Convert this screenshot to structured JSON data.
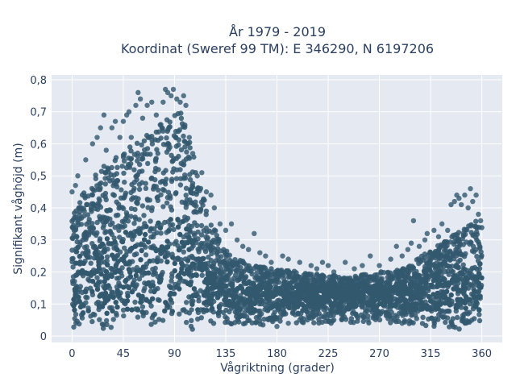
{
  "chart_data": {
    "type": "scatter",
    "title_line1": "År 1979 - 2019",
    "title_line2": "Koordinat (Sweref 99 TM): E 346290, N 6197206",
    "xlabel": "Vågriktning (grader)",
    "ylabel": "Signifikant våghöjd (m)",
    "xlim": [
      -18,
      378
    ],
    "ylim": [
      -0.02,
      0.815
    ],
    "x_ticks": [
      0,
      45,
      90,
      135,
      180,
      225,
      270,
      315,
      360
    ],
    "x_tick_labels": [
      "0",
      "45",
      "90",
      "135",
      "180",
      "225",
      "270",
      "315",
      "360"
    ],
    "y_ticks": [
      0,
      0.1,
      0.2,
      0.3,
      0.4,
      0.5,
      0.6,
      0.7,
      0.8
    ],
    "y_tick_labels": [
      "0",
      "0,1",
      "0,2",
      "0,3",
      "0,4",
      "0,5",
      "0,6",
      "0,7",
      "0,8"
    ],
    "grid": true,
    "colors": {
      "marker": "#32586e",
      "plot_bg": "#e5e9f2",
      "grid": "#ffffff",
      "text": "#2a3f5f"
    },
    "envelope": {
      "x": [
        0,
        10,
        20,
        30,
        40,
        45,
        55,
        60,
        70,
        80,
        90,
        95,
        100,
        105,
        110,
        120,
        130,
        140,
        160,
        180,
        200,
        225,
        250,
        270,
        290,
        300,
        310,
        320,
        330,
        340,
        350,
        355,
        360
      ],
      "lower": [
        0.02,
        0.02,
        0.02,
        0.02,
        0.02,
        0.02,
        0.02,
        0.02,
        0.02,
        0.02,
        0.02,
        0.02,
        0.02,
        0.02,
        0.02,
        0.02,
        0.02,
        0.03,
        0.03,
        0.04,
        0.04,
        0.04,
        0.04,
        0.04,
        0.04,
        0.03,
        0.03,
        0.03,
        0.03,
        0.02,
        0.02,
        0.02,
        0.02
      ],
      "upper": [
        0.38,
        0.45,
        0.5,
        0.54,
        0.56,
        0.58,
        0.6,
        0.62,
        0.64,
        0.67,
        0.7,
        0.7,
        0.66,
        0.6,
        0.5,
        0.38,
        0.3,
        0.25,
        0.22,
        0.21,
        0.2,
        0.19,
        0.19,
        0.2,
        0.21,
        0.23,
        0.26,
        0.28,
        0.3,
        0.33,
        0.35,
        0.36,
        0.34
      ]
    },
    "outliers": [
      {
        "x": 0,
        "y": 0.45
      },
      {
        "x": 3,
        "y": 0.47
      },
      {
        "x": 5,
        "y": 0.5
      },
      {
        "x": 12,
        "y": 0.55
      },
      {
        "x": 18,
        "y": 0.6
      },
      {
        "x": 22,
        "y": 0.62
      },
      {
        "x": 25,
        "y": 0.65
      },
      {
        "x": 28,
        "y": 0.69
      },
      {
        "x": 30,
        "y": 0.58
      },
      {
        "x": 35,
        "y": 0.65
      },
      {
        "x": 38,
        "y": 0.67
      },
      {
        "x": 42,
        "y": 0.62
      },
      {
        "x": 45,
        "y": 0.67
      },
      {
        "x": 48,
        "y": 0.69
      },
      {
        "x": 50,
        "y": 0.7
      },
      {
        "x": 52,
        "y": 0.62
      },
      {
        "x": 56,
        "y": 0.72
      },
      {
        "x": 58,
        "y": 0.76
      },
      {
        "x": 60,
        "y": 0.74
      },
      {
        "x": 62,
        "y": 0.68
      },
      {
        "x": 66,
        "y": 0.72
      },
      {
        "x": 70,
        "y": 0.73
      },
      {
        "x": 74,
        "y": 0.69
      },
      {
        "x": 78,
        "y": 0.66
      },
      {
        "x": 80,
        "y": 0.73
      },
      {
        "x": 82,
        "y": 0.77
      },
      {
        "x": 84,
        "y": 0.76
      },
      {
        "x": 87,
        "y": 0.75
      },
      {
        "x": 89,
        "y": 0.77
      },
      {
        "x": 92,
        "y": 0.74
      },
      {
        "x": 95,
        "y": 0.73
      },
      {
        "x": 98,
        "y": 0.75
      },
      {
        "x": 100,
        "y": 0.72
      },
      {
        "x": 103,
        "y": 0.62
      },
      {
        "x": 106,
        "y": 0.57
      },
      {
        "x": 110,
        "y": 0.5
      },
      {
        "x": 114,
        "y": 0.51
      },
      {
        "x": 118,
        "y": 0.45
      },
      {
        "x": 122,
        "y": 0.44
      },
      {
        "x": 125,
        "y": 0.4
      },
      {
        "x": 130,
        "y": 0.35
      },
      {
        "x": 135,
        "y": 0.33
      },
      {
        "x": 140,
        "y": 0.35
      },
      {
        "x": 145,
        "y": 0.3
      },
      {
        "x": 150,
        "y": 0.28
      },
      {
        "x": 155,
        "y": 0.27
      },
      {
        "x": 160,
        "y": 0.32
      },
      {
        "x": 165,
        "y": 0.26
      },
      {
        "x": 170,
        "y": 0.25
      },
      {
        "x": 175,
        "y": 0.23
      },
      {
        "x": 185,
        "y": 0.25
      },
      {
        "x": 190,
        "y": 0.24
      },
      {
        "x": 200,
        "y": 0.23
      },
      {
        "x": 210,
        "y": 0.22
      },
      {
        "x": 215,
        "y": 0.21
      },
      {
        "x": 220,
        "y": 0.23
      },
      {
        "x": 225,
        "y": 0.22
      },
      {
        "x": 230,
        "y": 0.2
      },
      {
        "x": 240,
        "y": 0.23
      },
      {
        "x": 248,
        "y": 0.21
      },
      {
        "x": 255,
        "y": 0.22
      },
      {
        "x": 262,
        "y": 0.25
      },
      {
        "x": 270,
        "y": 0.22
      },
      {
        "x": 280,
        "y": 0.24
      },
      {
        "x": 285,
        "y": 0.28
      },
      {
        "x": 290,
        "y": 0.25
      },
      {
        "x": 295,
        "y": 0.27
      },
      {
        "x": 298,
        "y": 0.29
      },
      {
        "x": 300,
        "y": 0.36
      },
      {
        "x": 305,
        "y": 0.28
      },
      {
        "x": 310,
        "y": 0.3
      },
      {
        "x": 312,
        "y": 0.32
      },
      {
        "x": 318,
        "y": 0.33
      },
      {
        "x": 322,
        "y": 0.31
      },
      {
        "x": 325,
        "y": 0.35
      },
      {
        "x": 330,
        "y": 0.33
      },
      {
        "x": 333,
        "y": 0.41
      },
      {
        "x": 336,
        "y": 0.42
      },
      {
        "x": 338,
        "y": 0.44
      },
      {
        "x": 340,
        "y": 0.43
      },
      {
        "x": 342,
        "y": 0.41
      },
      {
        "x": 345,
        "y": 0.44
      },
      {
        "x": 348,
        "y": 0.4
      },
      {
        "x": 350,
        "y": 0.46
      },
      {
        "x": 352,
        "y": 0.42
      },
      {
        "x": 355,
        "y": 0.44
      },
      {
        "x": 357,
        "y": 0.38
      },
      {
        "x": 359,
        "y": 0.36
      },
      {
        "x": 180,
        "y": 0.03
      },
      {
        "x": 190,
        "y": 0.04
      },
      {
        "x": 200,
        "y": 0.05
      },
      {
        "x": 230,
        "y": 0.05
      },
      {
        "x": 260,
        "y": 0.05
      },
      {
        "x": 290,
        "y": 0.04
      }
    ]
  }
}
